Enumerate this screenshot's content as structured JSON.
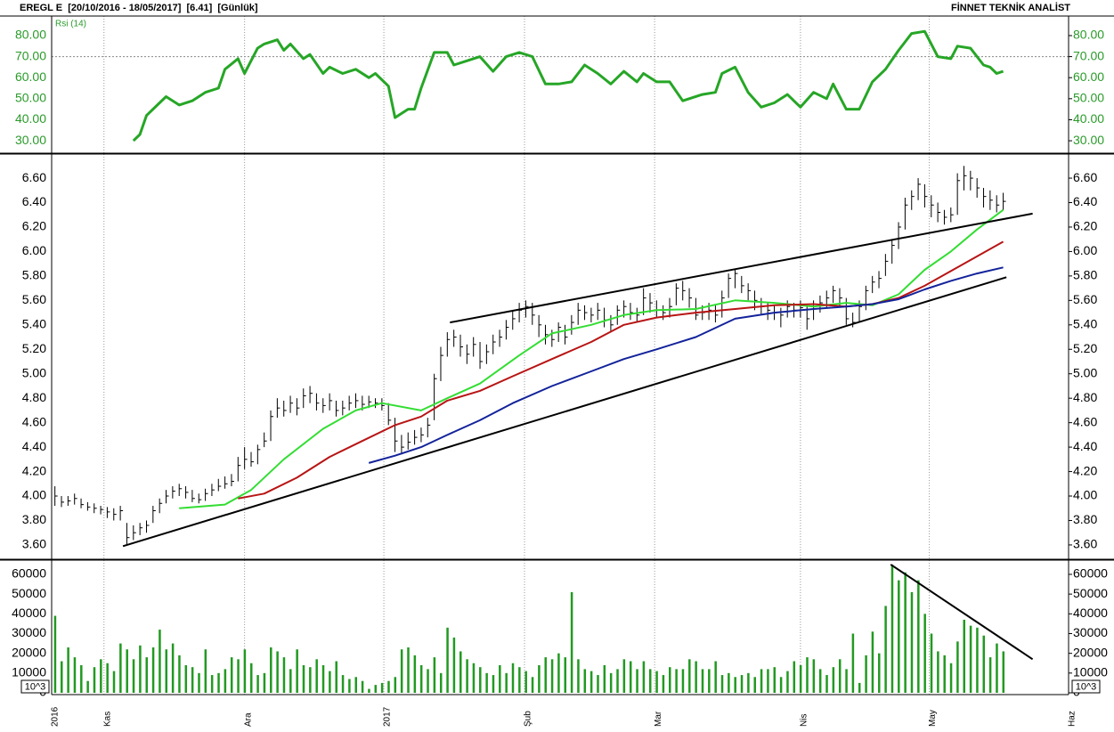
{
  "header": {
    "title": "EREGL E  [20/10/2016 - 18/05/2017]  [6.41]  [Günlük]",
    "brand": "FİNNET TEKNİK ANALİST"
  },
  "chart_data": [
    {
      "type": "line",
      "title": "Rsi (14)",
      "color": "#26a626",
      "axis_color": "#2a9a2a",
      "ylim": [
        24.1,
        89.3
      ],
      "yticks": [
        {
          "value": 30,
          "label": "30.00"
        },
        {
          "value": 40,
          "label": "40.00"
        },
        {
          "value": 50,
          "label": "50.00"
        },
        {
          "value": 60,
          "label": "60.00"
        },
        {
          "value": 70,
          "label": "70.00"
        },
        {
          "value": 80,
          "label": "80.00"
        }
      ],
      "reference_line": 70,
      "x": [
        12,
        13,
        14,
        16,
        17,
        19,
        21,
        23,
        25,
        26,
        28,
        29,
        31,
        32,
        34,
        35,
        36,
        38,
        39,
        41,
        42,
        44,
        46,
        48,
        49,
        51,
        52,
        54,
        55,
        56,
        58,
        60,
        61,
        63,
        65,
        67,
        69,
        71,
        73,
        75,
        77,
        79,
        81,
        83,
        85,
        87,
        89,
        90,
        92,
        94,
        96,
        99,
        101,
        102,
        104,
        106,
        108,
        110,
        112,
        114,
        116,
        118,
        119,
        121,
        123,
        125,
        127,
        129,
        131,
        133,
        135,
        137,
        138,
        140,
        142,
        143,
        144,
        145
      ],
      "values": [
        30,
        33,
        42,
        48,
        51,
        47,
        49,
        53,
        55,
        64,
        69,
        62,
        74,
        76,
        78,
        73,
        76,
        69,
        71,
        62,
        65,
        62,
        64,
        60,
        62,
        56,
        41,
        45,
        45,
        55,
        72,
        72,
        66,
        68,
        70,
        63,
        70,
        72,
        70,
        57,
        57,
        58,
        66,
        62,
        57,
        63,
        58,
        62,
        58,
        58,
        49,
        52,
        53,
        62,
        65,
        53,
        46,
        48,
        52,
        46,
        53,
        50,
        57,
        45,
        45,
        58,
        64,
        73,
        81,
        82,
        70,
        69,
        75,
        74,
        66,
        65,
        62,
        63
      ]
    },
    {
      "type": "ohlc",
      "color": "#000000",
      "axis_color": "#000000",
      "ylim": [
        3.483,
        6.797
      ],
      "yticks": [
        {
          "value": 3.6,
          "label": "3.60"
        },
        {
          "value": 3.8,
          "label": "3.80"
        },
        {
          "value": 4.0,
          "label": "4.00"
        },
        {
          "value": 4.2,
          "label": "4.20"
        },
        {
          "value": 4.4,
          "label": "4.40"
        },
        {
          "value": 4.6,
          "label": "4.60"
        },
        {
          "value": 4.8,
          "label": "4.80"
        },
        {
          "value": 5.0,
          "label": "5.00"
        },
        {
          "value": 5.2,
          "label": "5.20"
        },
        {
          "value": 5.4,
          "label": "5.40"
        },
        {
          "value": 5.6,
          "label": "5.60"
        },
        {
          "value": 5.8,
          "label": "5.80"
        },
        {
          "value": 6.0,
          "label": "6.00"
        },
        {
          "value": 6.2,
          "label": "6.20"
        },
        {
          "value": 6.4,
          "label": "6.40"
        },
        {
          "value": 6.6,
          "label": "6.60"
        }
      ],
      "x": [
        0,
        1,
        2,
        3,
        4,
        5,
        6,
        7,
        8,
        9,
        10,
        11,
        12,
        13,
        14,
        15,
        16,
        17,
        18,
        19,
        20,
        21,
        22,
        23,
        24,
        25,
        26,
        27,
        28,
        29,
        30,
        31,
        32,
        33,
        34,
        35,
        36,
        37,
        38,
        39,
        40,
        41,
        42,
        43,
        44,
        45,
        46,
        47,
        48,
        49,
        50,
        51,
        52,
        53,
        54,
        55,
        56,
        57,
        58,
        59,
        60,
        61,
        62,
        63,
        64,
        65,
        66,
        67,
        68,
        69,
        70,
        71,
        72,
        73,
        74,
        75,
        76,
        77,
        78,
        79,
        80,
        81,
        82,
        83,
        84,
        85,
        86,
        87,
        88,
        89,
        90,
        91,
        92,
        93,
        94,
        95,
        96,
        97,
        98,
        99,
        100,
        101,
        102,
        103,
        104,
        105,
        106,
        107,
        108,
        109,
        110,
        111,
        112,
        113,
        114,
        115,
        116,
        117,
        118,
        119,
        120,
        121,
        122,
        123,
        124,
        125,
        126,
        127,
        128,
        129,
        130,
        131,
        132,
        133,
        134,
        135,
        136,
        137,
        138,
        139,
        140,
        141,
        142,
        143,
        144,
        145
      ],
      "high": [
        4.08,
        4.0,
        4.0,
        4.02,
        3.98,
        3.95,
        3.94,
        3.92,
        3.91,
        3.9,
        3.92,
        3.78,
        3.76,
        3.78,
        3.8,
        3.92,
        3.98,
        4.05,
        4.08,
        4.1,
        4.08,
        4.05,
        4.02,
        4.06,
        4.1,
        4.14,
        4.16,
        4.18,
        4.32,
        4.4,
        4.36,
        4.42,
        4.52,
        4.7,
        4.8,
        4.78,
        4.82,
        4.8,
        4.88,
        4.9,
        4.84,
        4.8,
        4.84,
        4.78,
        4.78,
        4.82,
        4.84,
        4.82,
        4.82,
        4.8,
        4.8,
        4.76,
        4.64,
        4.5,
        4.52,
        4.54,
        4.56,
        4.64,
        5.0,
        5.22,
        5.34,
        5.36,
        5.32,
        5.24,
        5.3,
        5.26,
        5.24,
        5.32,
        5.36,
        5.44,
        5.52,
        5.58,
        5.6,
        5.58,
        5.48,
        5.4,
        5.36,
        5.42,
        5.4,
        5.48,
        5.58,
        5.56,
        5.54,
        5.58,
        5.54,
        5.48,
        5.56,
        5.6,
        5.58,
        5.54,
        5.7,
        5.66,
        5.6,
        5.56,
        5.62,
        5.74,
        5.76,
        5.7,
        5.62,
        5.56,
        5.58,
        5.56,
        5.68,
        5.82,
        5.86,
        5.8,
        5.74,
        5.68,
        5.62,
        5.58,
        5.56,
        5.54,
        5.6,
        5.58,
        5.6,
        5.56,
        5.6,
        5.64,
        5.68,
        5.72,
        5.7,
        5.62,
        5.5,
        5.6,
        5.72,
        5.8,
        5.84,
        5.98,
        6.1,
        6.24,
        6.44,
        6.5,
        6.6,
        6.55,
        6.46,
        6.4,
        6.34,
        6.36,
        6.64,
        6.7,
        6.66,
        6.6,
        6.52,
        6.5,
        6.46,
        6.48
      ],
      "low": [
        3.92,
        3.91,
        3.92,
        3.93,
        3.9,
        3.88,
        3.86,
        3.85,
        3.82,
        3.8,
        3.8,
        3.6,
        3.64,
        3.68,
        3.7,
        3.78,
        3.86,
        3.94,
        3.98,
        4.0,
        3.98,
        3.95,
        3.94,
        3.96,
        4.0,
        4.04,
        4.06,
        4.08,
        4.12,
        4.22,
        4.24,
        4.26,
        4.4,
        4.45,
        4.64,
        4.65,
        4.68,
        4.66,
        4.72,
        4.76,
        4.7,
        4.68,
        4.7,
        4.65,
        4.66,
        4.7,
        4.72,
        4.7,
        4.72,
        4.72,
        4.7,
        4.58,
        4.36,
        4.34,
        4.38,
        4.42,
        4.44,
        4.48,
        4.62,
        4.94,
        5.14,
        5.22,
        5.14,
        5.08,
        5.14,
        5.04,
        5.08,
        5.16,
        5.22,
        5.28,
        5.36,
        5.42,
        5.46,
        5.4,
        5.3,
        5.24,
        5.22,
        5.26,
        5.24,
        5.32,
        5.4,
        5.44,
        5.42,
        5.44,
        5.38,
        5.34,
        5.4,
        5.46,
        5.44,
        5.42,
        5.48,
        5.5,
        5.46,
        5.44,
        5.46,
        5.56,
        5.6,
        5.54,
        5.44,
        5.44,
        5.44,
        5.42,
        5.46,
        5.62,
        5.7,
        5.66,
        5.6,
        5.52,
        5.48,
        5.44,
        5.44,
        5.38,
        5.46,
        5.46,
        5.46,
        5.36,
        5.44,
        5.5,
        5.54,
        5.58,
        5.54,
        5.4,
        5.38,
        5.42,
        5.52,
        5.66,
        5.7,
        5.8,
        5.9,
        6.02,
        6.18,
        6.34,
        6.42,
        6.36,
        6.28,
        6.24,
        6.22,
        6.24,
        6.3,
        6.5,
        6.5,
        6.44,
        6.36,
        6.34,
        6.32,
        6.34
      ],
      "close": [
        4.0,
        3.95,
        3.96,
        3.98,
        3.93,
        3.91,
        3.9,
        3.89,
        3.87,
        3.85,
        3.88,
        3.66,
        3.7,
        3.74,
        3.76,
        3.88,
        3.94,
        4.0,
        4.04,
        4.06,
        4.03,
        3.98,
        3.97,
        4.02,
        4.05,
        4.08,
        4.1,
        4.12,
        4.25,
        4.3,
        4.28,
        4.38,
        4.45,
        4.65,
        4.72,
        4.7,
        4.76,
        4.72,
        4.82,
        4.84,
        4.76,
        4.74,
        4.78,
        4.7,
        4.72,
        4.76,
        4.78,
        4.75,
        4.77,
        4.76,
        4.74,
        4.62,
        4.45,
        4.4,
        4.44,
        4.48,
        4.5,
        4.58,
        4.96,
        5.15,
        5.28,
        5.3,
        5.22,
        5.16,
        5.24,
        5.1,
        5.18,
        5.26,
        5.3,
        5.38,
        5.45,
        5.52,
        5.55,
        5.48,
        5.4,
        5.32,
        5.28,
        5.38,
        5.3,
        5.42,
        5.52,
        5.5,
        5.48,
        5.52,
        5.44,
        5.4,
        5.52,
        5.55,
        5.5,
        5.48,
        5.62,
        5.58,
        5.52,
        5.5,
        5.55,
        5.7,
        5.68,
        5.62,
        5.48,
        5.5,
        5.52,
        5.48,
        5.62,
        5.78,
        5.82,
        5.72,
        5.68,
        5.6,
        5.55,
        5.52,
        5.5,
        5.48,
        5.55,
        5.52,
        5.54,
        5.45,
        5.55,
        5.58,
        5.62,
        5.68,
        5.62,
        5.45,
        5.42,
        5.55,
        5.68,
        5.75,
        5.78,
        5.92,
        6.05,
        6.2,
        6.38,
        6.45,
        6.55,
        6.45,
        6.38,
        6.32,
        6.28,
        6.3,
        6.58,
        6.62,
        6.6,
        6.52,
        6.45,
        6.42,
        6.38,
        6.41
      ],
      "lines": [
        {
          "color": "#33dd33",
          "x": [
            19,
            26,
            30,
            35,
            41,
            46,
            50,
            56,
            60,
            65,
            71,
            76,
            82,
            87,
            92,
            98,
            104,
            110,
            116,
            121,
            125,
            129,
            133,
            137,
            141,
            145
          ],
          "values": [
            3.9,
            3.93,
            4.05,
            4.3,
            4.55,
            4.7,
            4.76,
            4.7,
            4.8,
            4.92,
            5.15,
            5.33,
            5.4,
            5.48,
            5.52,
            5.53,
            5.6,
            5.58,
            5.55,
            5.58,
            5.56,
            5.65,
            5.85,
            6.0,
            6.18,
            6.34
          ]
        },
        {
          "color": "#b81414",
          "x": [
            28,
            32,
            37,
            42,
            47,
            52,
            56,
            60,
            65,
            70,
            76,
            82,
            87,
            92,
            98,
            104,
            110,
            116,
            121,
            125,
            129,
            133,
            137,
            141,
            145
          ],
          "values": [
            3.98,
            4.02,
            4.15,
            4.32,
            4.45,
            4.58,
            4.65,
            4.78,
            4.86,
            4.98,
            5.12,
            5.26,
            5.4,
            5.46,
            5.5,
            5.53,
            5.56,
            5.57,
            5.55,
            5.57,
            5.62,
            5.72,
            5.84,
            5.96,
            6.08
          ]
        },
        {
          "color": "#13239a",
          "x": [
            48,
            52,
            56,
            60,
            65,
            70,
            76,
            82,
            87,
            92,
            98,
            104,
            110,
            116,
            121,
            125,
            129,
            133,
            137,
            141,
            145
          ],
          "values": [
            4.27,
            4.33,
            4.4,
            4.5,
            4.62,
            4.76,
            4.9,
            5.02,
            5.12,
            5.2,
            5.3,
            5.45,
            5.5,
            5.53,
            5.55,
            5.57,
            5.61,
            5.69,
            5.76,
            5.82,
            5.87
          ]
        }
      ],
      "trendlines": [
        {
          "color": "#000000",
          "x": [
            10.4,
            145.5
          ],
          "values": [
            3.59,
            5.79
          ]
        },
        {
          "color": "#000000",
          "x": [
            60.4,
            149.5
          ],
          "values": [
            5.42,
            6.31
          ]
        }
      ]
    },
    {
      "type": "bar",
      "color": "#229922",
      "axis_color": "#000000",
      "unit_label": "10^3",
      "ylim": [
        -900,
        67200
      ],
      "yticks": [
        0,
        10000,
        20000,
        30000,
        40000,
        50000,
        60000
      ],
      "values": [
        39000,
        16000,
        23000,
        18000,
        14000,
        6000,
        13000,
        17000,
        15000,
        11000,
        25000,
        22000,
        17000,
        24000,
        18000,
        23000,
        32000,
        22000,
        25000,
        19000,
        14000,
        13000,
        10000,
        22000,
        9000,
        10000,
        12000,
        18000,
        17000,
        22000,
        15000,
        9000,
        10000,
        23000,
        21000,
        18000,
        12000,
        22000,
        14000,
        13000,
        17000,
        14000,
        11000,
        16000,
        9000,
        7000,
        8000,
        6000,
        2000,
        4000,
        5000,
        6000,
        8000,
        22000,
        23000,
        19000,
        14000,
        12000,
        18000,
        10000,
        33000,
        28000,
        21000,
        17000,
        15000,
        13000,
        10000,
        9000,
        14000,
        10000,
        15000,
        13000,
        11000,
        8000,
        14000,
        18000,
        17000,
        20000,
        18000,
        51000,
        17000,
        12000,
        11000,
        9000,
        14000,
        10000,
        12000,
        17000,
        16000,
        12000,
        16000,
        12000,
        11000,
        9000,
        13000,
        12000,
        12000,
        17000,
        16000,
        12000,
        12000,
        16000,
        9000,
        10000,
        8000,
        9000,
        10000,
        8000,
        12000,
        12000,
        13000,
        8000,
        11000,
        16000,
        14000,
        18000,
        17000,
        12000,
        9000,
        13000,
        17000,
        12000,
        30000,
        5000,
        19000,
        31000,
        20000,
        44000,
        65000,
        57000,
        61000,
        51000,
        57000,
        40000,
        30000,
        21000,
        19000,
        15000,
        26000,
        37000,
        34000,
        33000,
        29000,
        18000,
        25000,
        21000
      ],
      "trendlines": [
        {
          "color": "#000000",
          "x": [
            127.8,
            149.5
          ],
          "values": [
            65000,
            17000
          ]
        }
      ],
      "xlim": [
        -0.5,
        155
      ],
      "xticks": [
        {
          "value": -0.5,
          "label": "2016"
        },
        {
          "value": 7.5,
          "label": "Kas"
        },
        {
          "value": 29,
          "label": "Ara"
        },
        {
          "value": 50.3,
          "label": "2017"
        },
        {
          "value": 71.8,
          "label": "Şub"
        },
        {
          "value": 91.7,
          "label": "Mar"
        },
        {
          "value": 114,
          "label": "Nis"
        },
        {
          "value": 133.7,
          "label": "May"
        },
        {
          "value": 155,
          "label": "Haz"
        }
      ]
    }
  ]
}
